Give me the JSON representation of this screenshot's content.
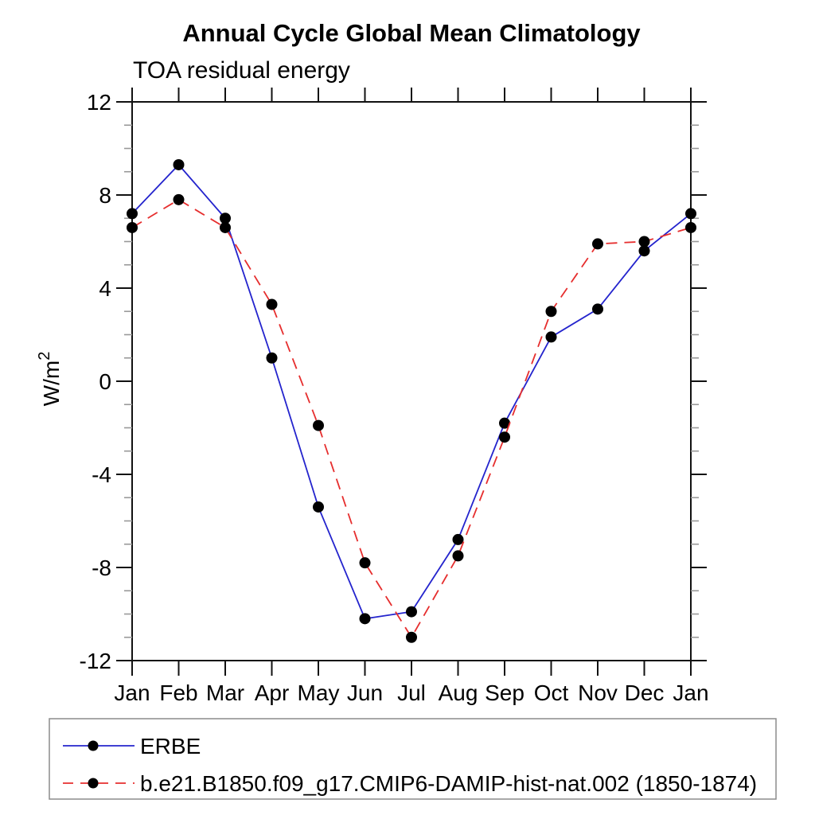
{
  "title": "Annual Cycle Global Mean Climatology",
  "subtitle": "TOA residual energy",
  "chart_data": {
    "type": "line",
    "categories": [
      "Jan",
      "Feb",
      "Mar",
      "Apr",
      "May",
      "Jun",
      "Jul",
      "Aug",
      "Sep",
      "Oct",
      "Nov",
      "Dec",
      "Jan"
    ],
    "xlabel": "",
    "ylabel": "W/m²",
    "ylabel_parts": {
      "base": "W/m",
      "superscript": "2"
    },
    "ylim": [
      -12,
      12
    ],
    "ytick_major": [
      12,
      8,
      4,
      0,
      -4,
      -8,
      -12
    ],
    "ytick_labels": [
      "12",
      "8",
      "4",
      "0",
      "-4",
      "-8",
      "-12"
    ],
    "ytick_minor_step": 1,
    "grid": false,
    "legend_position": "bottom-box",
    "series": [
      {
        "name": "ERBE",
        "line_style": "solid",
        "line_color": "#2424cd",
        "marker": "circle",
        "marker_color": "#000000",
        "values": [
          7.2,
          9.3,
          7.0,
          1.0,
          -5.4,
          -10.2,
          -9.9,
          -6.8,
          -1.8,
          1.9,
          3.1,
          5.6,
          7.2
        ]
      },
      {
        "name": "b.e21.B1850.f09_g17.CMIP6-DAMIP-hist-nat.002 (1850-1874)",
        "line_style": "dashed",
        "line_color": "#e62e2e",
        "marker": "circle",
        "marker_color": "#000000",
        "values": [
          6.6,
          7.8,
          6.6,
          3.3,
          -1.9,
          -7.8,
          -11.0,
          -7.5,
          -2.4,
          3.0,
          5.9,
          6.0,
          6.6
        ]
      }
    ]
  },
  "colors": {
    "axis": "#111111",
    "minor_tick": "#999999",
    "legend_border": "#8c8c8c",
    "background": "#ffffff",
    "text": "#000000"
  }
}
